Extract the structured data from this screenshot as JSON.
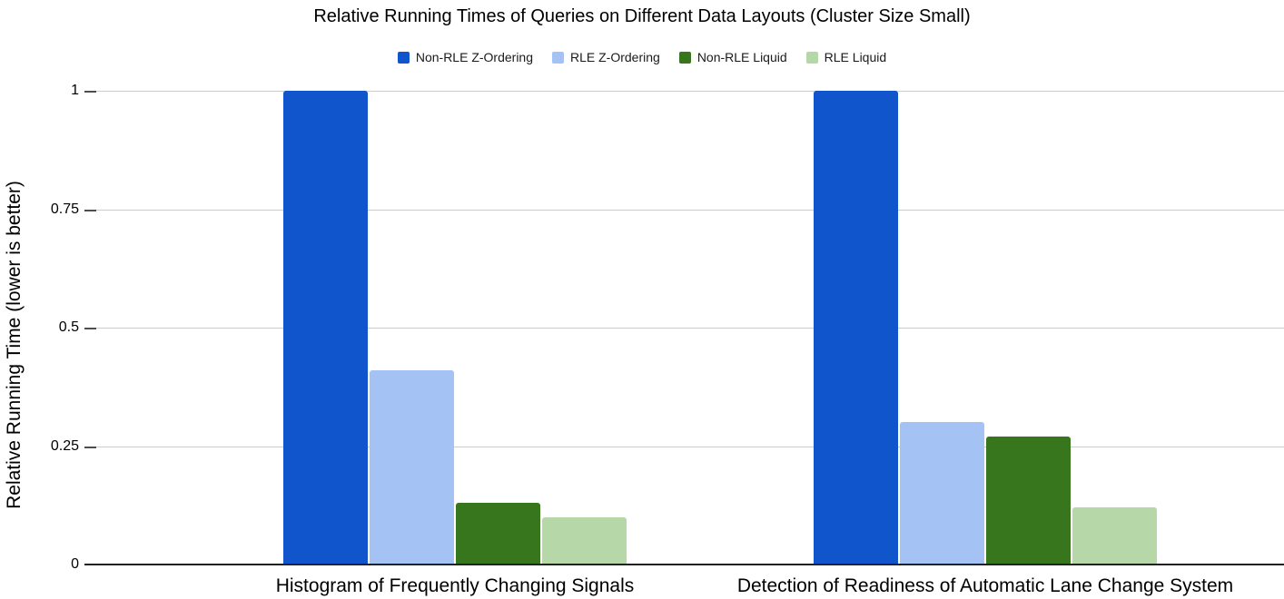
{
  "chart_data": {
    "type": "bar",
    "title": "Relative Running Times of Queries on Different Data Layouts (Cluster Size Small)",
    "ylabel": "Relative Running Time (lower is better)",
    "xlabel": "",
    "categories": [
      "Histogram of Frequently Changing Signals",
      "Detection of Readiness of Automatic Lane Change System"
    ],
    "series": [
      {
        "name": "Non-RLE Z-Ordering",
        "color": "#1155cc",
        "values": [
          1.0,
          1.0
        ]
      },
      {
        "name": "RLE Z-Ordering",
        "color": "#a4c2f4",
        "values": [
          0.41,
          0.3
        ]
      },
      {
        "name": "Non-RLE Liquid",
        "color": "#38761d",
        "values": [
          0.13,
          0.27
        ]
      },
      {
        "name": "RLE Liquid",
        "color": "#b6d7a8",
        "values": [
          0.1,
          0.12
        ]
      }
    ],
    "y_ticks": [
      0,
      0.25,
      0.5,
      0.75,
      1
    ],
    "y_tick_labels": [
      "0",
      "0.25",
      "0.5",
      "0.75",
      "1"
    ],
    "ylim": [
      0,
      1
    ],
    "grid": true,
    "legend_position": "top",
    "colors": {
      "grid": "#cccccc",
      "axis": "#212121",
      "text": "#000000"
    }
  }
}
